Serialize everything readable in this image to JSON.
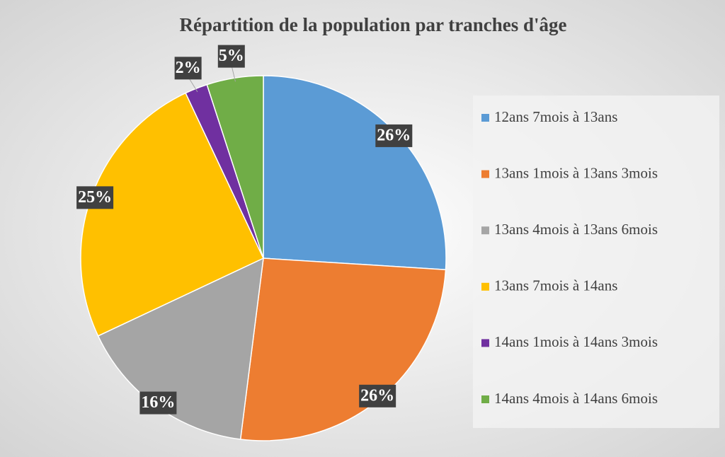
{
  "chart_data": {
    "type": "pie",
    "title": "Répartition de la population par tranches d'âge",
    "categories": [
      "12ans 7mois à 13ans",
      "13ans 1mois à 13ans 3mois",
      "13ans 4mois à 13ans 6mois",
      "13ans 7mois à 14ans",
      "14ans 1mois à 14ans 3mois",
      "14ans 4mois à 14ans 6mois"
    ],
    "values": [
      26,
      26,
      16,
      25,
      2,
      5
    ],
    "value_labels": [
      "26%",
      "26%",
      "16%",
      "25%",
      "2%",
      "5%"
    ],
    "colors": [
      "#5b9bd5",
      "#ed7d31",
      "#a5a5a5",
      "#ffc000",
      "#7030a0",
      "#70ad47"
    ],
    "legend": "right"
  }
}
